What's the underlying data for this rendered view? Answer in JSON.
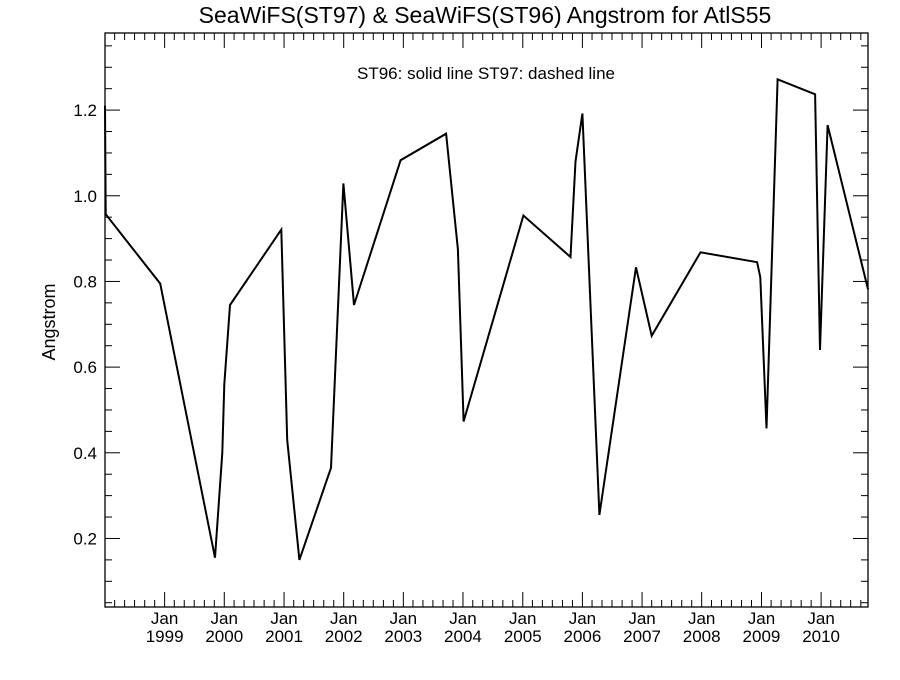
{
  "chart_data": {
    "type": "line",
    "title": "SeaWiFS(ST97) & SeaWiFS(ST96)  Angstrom for AtlS55",
    "annotation": "ST96: solid line   ST97: dashed line",
    "xlabel": "",
    "ylabel": "Angstrom",
    "xlim": [
      "1998-01-01",
      "2010-10-15"
    ],
    "ylim": [
      0.04,
      1.38
    ],
    "y_ticks": [
      0.2,
      0.4,
      0.6,
      0.8,
      1.0,
      1.2
    ],
    "y_tick_labels": [
      "0.2",
      "0.4",
      "0.6",
      "0.8",
      "1.0",
      "1.2"
    ],
    "x_ticks": [
      "1999-01-01",
      "2000-01-01",
      "2001-01-01",
      "2002-01-01",
      "2003-01-01",
      "2004-01-01",
      "2005-01-01",
      "2006-01-01",
      "2007-01-01",
      "2008-01-01",
      "2009-01-01",
      "2010-01-01"
    ],
    "x_tick_labels": [
      {
        "month": "Jan",
        "year": "1999"
      },
      {
        "month": "Jan",
        "year": "2000"
      },
      {
        "month": "Jan",
        "year": "2001"
      },
      {
        "month": "Jan",
        "year": "2002"
      },
      {
        "month": "Jan",
        "year": "2003"
      },
      {
        "month": "Jan",
        "year": "2004"
      },
      {
        "month": "Jan",
        "year": "2005"
      },
      {
        "month": "Jan",
        "year": "2006"
      },
      {
        "month": "Jan",
        "year": "2007"
      },
      {
        "month": "Jan",
        "year": "2008"
      },
      {
        "month": "Jan",
        "year": "2009"
      },
      {
        "month": "Jan",
        "year": "2010"
      }
    ],
    "grid": false,
    "series": [
      {
        "name": "ST96",
        "line_style": "solid",
        "color": "#000000",
        "points": [
          {
            "x": "1998-01-01",
            "y": 1.21
          },
          {
            "x": "1998-01-05",
            "y": 0.957
          },
          {
            "x": "1998-12-05",
            "y": 0.795
          },
          {
            "x": "1999-11-05",
            "y": 0.155
          },
          {
            "x": "1999-12-20",
            "y": 0.4
          },
          {
            "x": "2000-01-01",
            "y": 0.56
          },
          {
            "x": "2000-02-05",
            "y": 0.745
          },
          {
            "x": "2000-12-15",
            "y": 0.921
          },
          {
            "x": "2001-01-20",
            "y": 0.43
          },
          {
            "x": "2001-04-05",
            "y": 0.15
          },
          {
            "x": "2001-10-15",
            "y": 0.365
          },
          {
            "x": "2001-12-30",
            "y": 1.029
          },
          {
            "x": "2002-03-05",
            "y": 0.745
          },
          {
            "x": "2002-12-15",
            "y": 1.083
          },
          {
            "x": "2003-09-20",
            "y": 1.145
          },
          {
            "x": "2003-12-01",
            "y": 0.875
          },
          {
            "x": "2004-01-05",
            "y": 0.473
          },
          {
            "x": "2005-01-05",
            "y": 0.954
          },
          {
            "x": "2005-10-20",
            "y": 0.857
          },
          {
            "x": "2005-11-20",
            "y": 1.08
          },
          {
            "x": "2006-01-01",
            "y": 1.192
          },
          {
            "x": "2006-04-15",
            "y": 0.255
          },
          {
            "x": "2006-11-25",
            "y": 0.833
          },
          {
            "x": "2007-03-01",
            "y": 0.673
          },
          {
            "x": "2007-12-25",
            "y": 0.868
          },
          {
            "x": "2008-12-05",
            "y": 0.845
          },
          {
            "x": "2008-12-25",
            "y": 0.81
          },
          {
            "x": "2009-02-01",
            "y": 0.457
          },
          {
            "x": "2009-04-10",
            "y": 1.272
          },
          {
            "x": "2009-11-25",
            "y": 1.237
          },
          {
            "x": "2009-12-25",
            "y": 0.64
          },
          {
            "x": "2010-02-10",
            "y": 1.165
          },
          {
            "x": "2010-10-15",
            "y": 0.782
          }
        ]
      }
    ]
  }
}
